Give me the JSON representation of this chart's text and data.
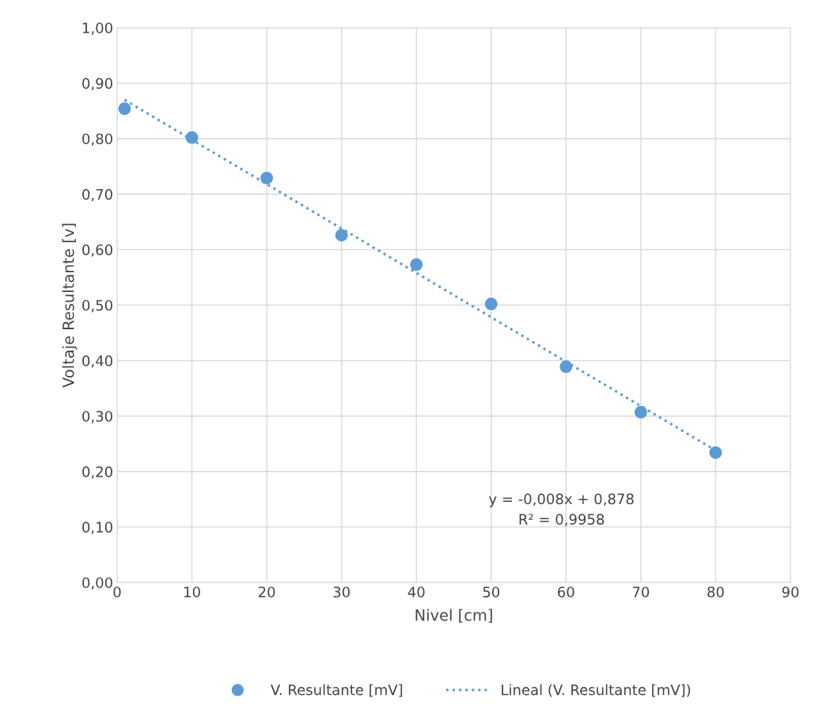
{
  "chart_data": {
    "type": "scatter",
    "xlabel": "Nivel [cm]",
    "ylabel": "Voltaje Resultante [v]",
    "x": [
      1,
      10,
      20,
      30,
      40,
      50,
      60,
      70,
      80
    ],
    "series": [
      {
        "name": "V. Resultante [mV]",
        "color": "#5b9bd5",
        "marker": "circle",
        "values": [
          0.854,
          0.802,
          0.729,
          0.626,
          0.573,
          0.502,
          0.389,
          0.307,
          0.234
        ]
      },
      {
        "name": "Lineal (V. Resultante [mV])",
        "color": "#5b9bd5",
        "type": "line",
        "line_style": "dotted",
        "marker": "none",
        "x": [
          1,
          80
        ],
        "values": [
          0.87,
          0.238
        ]
      }
    ],
    "xlim": [
      0,
      90
    ],
    "xticks": [
      0,
      10,
      20,
      30,
      40,
      50,
      60,
      70,
      80,
      90
    ],
    "ylim": [
      0,
      1
    ],
    "yticks": [
      {
        "value": 0,
        "label": "0,00"
      },
      {
        "value": 0.1,
        "label": "0,10"
      },
      {
        "value": 0.2,
        "label": "0,20"
      },
      {
        "value": 0.3,
        "label": "0,30"
      },
      {
        "value": 0.4,
        "label": "0,40"
      },
      {
        "value": 0.5,
        "label": "0,50"
      },
      {
        "value": 0.6,
        "label": "0,60"
      },
      {
        "value": 0.7,
        "label": "0,70"
      },
      {
        "value": 0.8,
        "label": "0,80"
      },
      {
        "value": 0.9,
        "label": "0,90"
      },
      {
        "value": 1.0,
        "label": "1,00"
      }
    ],
    "annotations": [
      "y = -0,008x + 0,878\nR² = 0,9958"
    ],
    "grid": true,
    "legend": "bottom"
  }
}
